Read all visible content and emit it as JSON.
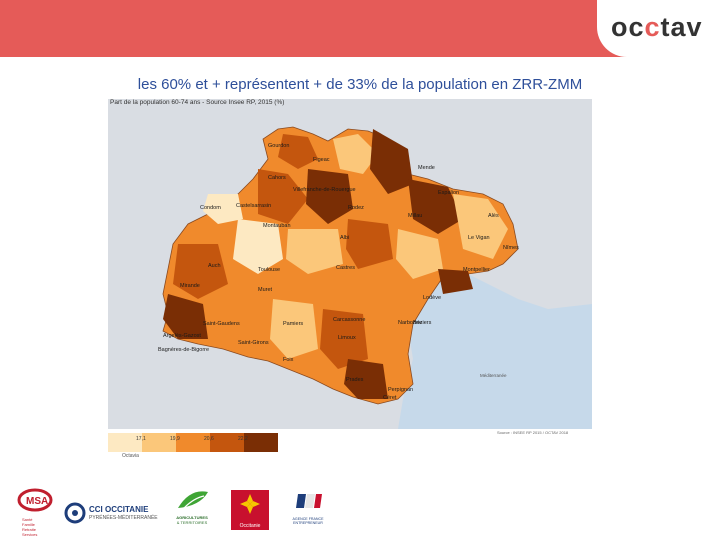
{
  "brand": {
    "logo_part1": "oc",
    "logo_mark": "c",
    "logo_part2": "tav"
  },
  "slide_title": "les 60% et + représentent + de 33% de la population en ZRR-ZMM",
  "map": {
    "caption": "Part de la population 60-74 ans - Source Insee RP, 2015 (%)",
    "source_note": "Source : INSEE RP 2015 / OCTAV 2018",
    "sea_label": "Méditerranée",
    "places": [
      "Gourdon",
      "Figeac",
      "Cahors",
      "Villefranche-de-Rouergue",
      "Mende",
      "Espalion",
      "Rodez",
      "Millau",
      "Alès",
      "Castelsarrasin",
      "Montauban",
      "Albi",
      "Le Vigan",
      "Condom",
      "Nîmes",
      "Auch",
      "Toulouse",
      "Castres",
      "Montpellier",
      "Mirande",
      "Muret",
      "Lodève",
      "Béziers",
      "Saint-Gaudens",
      "Pamiers",
      "Carcassonne",
      "Narbonne",
      "Argelès-Gazost",
      "Saint-Girons",
      "Limoux",
      "Bagnères-de-Bigorre",
      "Foix",
      "Prades",
      "Perpignan",
      "Céret"
    ],
    "colors": {
      "sea": "#c6d9ea",
      "land": "#d9dde3",
      "class1": "#fde9c2",
      "class2": "#fbc77a",
      "class3": "#f08a2c",
      "class4": "#c4560e",
      "class5": "#7a2e05"
    }
  },
  "legend": {
    "title": "Octavia",
    "ticks": [
      "17,1",
      "19,9",
      "20,6",
      "22,2"
    ],
    "colors": [
      "#fde9c2",
      "#fbc77a",
      "#f08a2c",
      "#c4560e",
      "#7a2e05"
    ]
  },
  "partners": {
    "msa_lines": [
      "Santé",
      "Famille",
      "Retraite",
      "Services"
    ],
    "cci_name": "CCI OCCITANIE",
    "cci_sub": "PYRÉNÉES-MÉDITERRANÉE",
    "agri_name": "AGRICULTURES",
    "agri_sub": "& TERRITOIRES",
    "region_name": "Occitanie",
    "agence_name": "AGENCE FRANCE",
    "agence_sub": "ENTREPRENEUR"
  }
}
